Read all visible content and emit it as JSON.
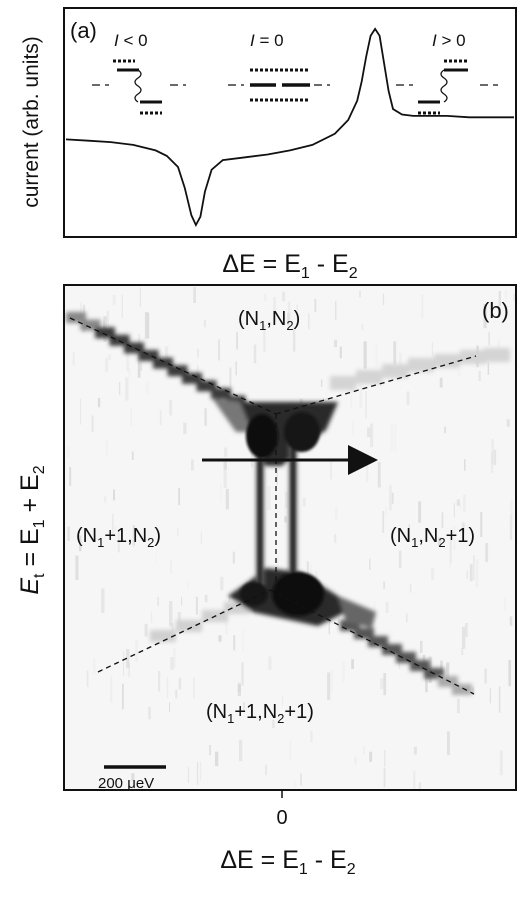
{
  "chart_data": [
    {
      "type": "line",
      "panel_label": "(a)",
      "ylabel": "current (arb. units)",
      "xlabel_parts": [
        "ΔE = E",
        "1",
        " - E",
        "2"
      ],
      "x": [
        -1.0,
        -0.9,
        -0.8,
        -0.7,
        -0.6,
        -0.55,
        -0.5,
        -0.47,
        -0.44,
        -0.42,
        -0.4,
        -0.38,
        -0.35,
        -0.3,
        -0.2,
        -0.1,
        0.0,
        0.1,
        0.2,
        0.26,
        0.3,
        0.32,
        0.34,
        0.36,
        0.38,
        0.4,
        0.42,
        0.44,
        0.46,
        0.5,
        0.55,
        0.6,
        0.7,
        0.8,
        0.9,
        1.0
      ],
      "y": [
        0.2,
        0.19,
        0.18,
        0.16,
        0.12,
        0.08,
        0.0,
        -0.15,
        -0.35,
        -0.42,
        -0.36,
        -0.18,
        -0.02,
        0.05,
        0.07,
        0.09,
        0.12,
        0.16,
        0.24,
        0.34,
        0.48,
        0.62,
        0.8,
        0.95,
        1.0,
        0.95,
        0.75,
        0.55,
        0.42,
        0.38,
        0.37,
        0.37,
        0.37,
        0.36,
        0.36,
        0.36
      ],
      "insets": [
        {
          "label_var": "I",
          "label_rest": " < 0"
        },
        {
          "label_var": "I",
          "label_rest": " = 0"
        },
        {
          "label_var": "I",
          "label_rest": " > 0"
        }
      ]
    },
    {
      "type": "heatmap",
      "panel_label": "(b)",
      "ylabel_parts": [
        "E",
        "t",
        " = E",
        "1",
        " + E",
        "2"
      ],
      "xlabel_parts": [
        "ΔE = E",
        "1",
        " - E",
        "2"
      ],
      "xtick": "0",
      "scale_bar": "200 μeV",
      "regions": [
        {
          "parts": [
            "(N",
            "1",
            ",N",
            "2",
            ")"
          ]
        },
        {
          "parts": [
            "(N",
            "1",
            "+1,N",
            "2",
            ")"
          ]
        },
        {
          "parts": [
            "(N",
            "1",
            ",N",
            "2",
            "+1)"
          ]
        },
        {
          "parts": [
            "(N",
            "1",
            "+1,N",
            "2",
            "+1)"
          ]
        }
      ]
    }
  ]
}
